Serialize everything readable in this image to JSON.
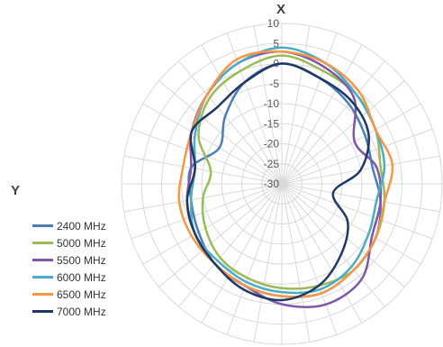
{
  "chart_data": {
    "type": "radar",
    "title": "",
    "axis_top_label": "X",
    "axis_left_label": "Y",
    "radial_ticks": [
      "10",
      "5",
      "0",
      "-5",
      "-10",
      "-15",
      "-20",
      "-25",
      "-30"
    ],
    "rlim": [
      -30,
      10
    ],
    "angle_step_deg": 10,
    "grid": true,
    "legend_position": "left",
    "angles_deg": [
      0,
      20,
      40,
      60,
      80,
      100,
      120,
      140,
      160,
      180,
      200,
      220,
      240,
      260,
      280,
      300,
      320,
      340
    ],
    "series": [
      {
        "name": "2400 MHz",
        "color": "#4a7ebb",
        "values": [
          0,
          -2,
          -4,
          -6,
          -7,
          -5,
          -3,
          -2,
          -1,
          -2,
          -3,
          -4,
          -6,
          -7,
          -7,
          -12,
          -8,
          -3
        ]
      },
      {
        "name": "5000 MHz",
        "color": "#9bbb59",
        "values": [
          2,
          0,
          -1,
          -3,
          -5,
          -4,
          -3,
          -2,
          -3,
          -4,
          -5,
          -6,
          -8,
          -10,
          -12,
          -6,
          -2,
          0
        ]
      },
      {
        "name": "5500 MHz",
        "color": "#7e57a8",
        "values": [
          3,
          1,
          -2,
          -9,
          -6,
          -5,
          -4,
          1,
          2,
          0,
          -3,
          -4,
          -5,
          -6,
          -7,
          -4,
          -1,
          2
        ]
      },
      {
        "name": "6000 MHz",
        "color": "#4bacc6",
        "values": [
          4,
          2,
          -1,
          -3,
          -4,
          -6,
          -5,
          -3,
          -2,
          -3,
          -4,
          -5,
          -5,
          -7,
          -8,
          -5,
          -1,
          2
        ]
      },
      {
        "name": "6500 MHz",
        "color": "#f79646",
        "values": [
          3,
          2,
          0,
          -3,
          -2,
          -4,
          -3,
          -2,
          -1,
          -2,
          -3,
          -4,
          -4,
          -4,
          -5,
          -4,
          -1,
          3
        ]
      },
      {
        "name": "7000 MHz",
        "color": "#1f3864",
        "values": [
          0,
          -2,
          -3,
          -5,
          -10,
          -17,
          -11,
          -7,
          -3,
          -1,
          -2,
          -4,
          -5,
          -6,
          -8,
          -4,
          -5,
          -3
        ]
      }
    ]
  }
}
